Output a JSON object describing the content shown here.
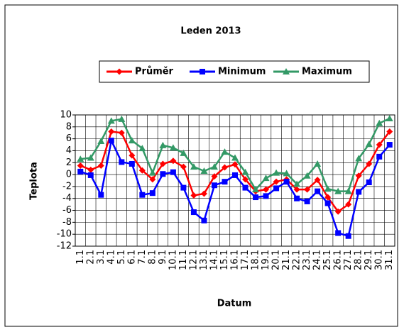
{
  "chart_data": {
    "type": "line",
    "title": "Leden 2013",
    "x_label": "Datum",
    "y_label": "Teplota",
    "categories": [
      "1.1",
      "2.1",
      "3.1",
      "4.1",
      "5.1",
      "6.1",
      "7.1",
      "8.1",
      "9.1",
      "10.1",
      "11.1",
      "12.1",
      "13.1",
      "14.1",
      "15.1",
      "16.1",
      "17.1",
      "18.1",
      "19.1",
      "20.1",
      "21.1",
      "22.1",
      "23.1",
      "24.1",
      "25.1",
      "26.1",
      "27.1",
      "28.1",
      "29.1",
      "30.1",
      "31.1"
    ],
    "series": [
      {
        "name": "Průměr",
        "color": "#ff0000",
        "marker": "diamond",
        "values": [
          1.5,
          0.8,
          1.5,
          7.2,
          7.0,
          3.2,
          0.7,
          -0.8,
          1.8,
          2.3,
          1.3,
          -3.5,
          -3.2,
          -0.3,
          1.2,
          1.7,
          -0.8,
          -2.8,
          -2.5,
          -1.2,
          -0.8,
          -2.5,
          -2.5,
          -0.9,
          -3.8,
          -6.2,
          -5.0,
          -0.2,
          1.8,
          5.0,
          7.2
        ]
      },
      {
        "name": "Minimum",
        "color": "#0000ff",
        "marker": "square",
        "values": [
          0.5,
          -0.1,
          -3.4,
          5.7,
          2.1,
          1.8,
          -3.4,
          -3.1,
          0.1,
          0.4,
          -2.2,
          -6.3,
          -7.7,
          -1.8,
          -1.2,
          -0.1,
          -2.2,
          -3.8,
          -3.6,
          -2.3,
          -1.2,
          -4.0,
          -4.5,
          -2.8,
          -4.8,
          -9.8,
          -10.3,
          -2.9,
          -1.3,
          3.0,
          5.0
        ]
      },
      {
        "name": "Maximum",
        "color": "#339966",
        "marker": "triangle",
        "values": [
          2.6,
          2.8,
          5.6,
          9.0,
          9.3,
          5.7,
          4.4,
          0.3,
          4.9,
          4.5,
          3.6,
          1.3,
          0.6,
          1.3,
          3.8,
          2.8,
          0.4,
          -2.5,
          -0.6,
          0.3,
          0.2,
          -1.6,
          -0.2,
          1.8,
          -2.4,
          -2.8,
          -2.8,
          2.7,
          5.1,
          8.6,
          9.4
        ]
      }
    ],
    "ylim": [
      -12,
      10
    ],
    "yticks": [
      -12,
      -10,
      -8,
      -6,
      -4,
      -2,
      0,
      2,
      4,
      6,
      8,
      10
    ],
    "grid": true,
    "legend": "top"
  }
}
